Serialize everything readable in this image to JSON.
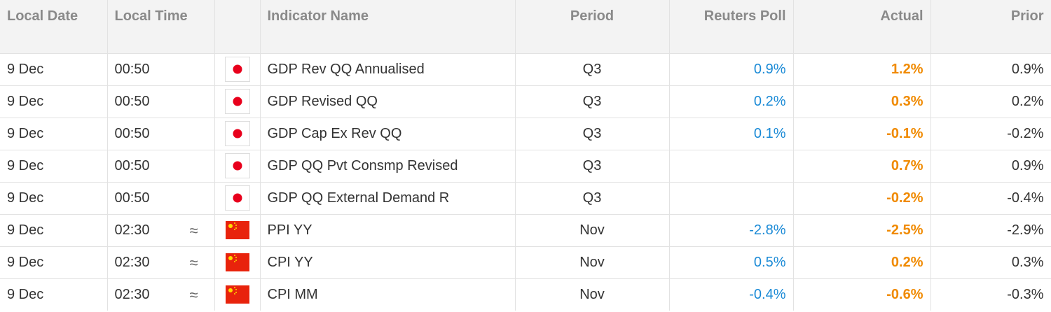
{
  "header": {
    "local_date": "Local Date",
    "local_time": "Local Time",
    "indicator": "Indicator Name",
    "period": "Period",
    "poll": "Reuters Poll",
    "actual": "Actual",
    "prior": "Prior"
  },
  "rows": [
    {
      "date": "9 Dec",
      "time": "00:50",
      "indicator": "GDP Rev QQ Annualised",
      "period": "Q3",
      "poll": "0.9%",
      "actual": "1.2%",
      "prior": "0.9%"
    },
    {
      "date": "9 Dec",
      "time": "00:50",
      "indicator": "GDP Revised QQ",
      "period": "Q3",
      "poll": "0.2%",
      "actual": "0.3%",
      "prior": "0.2%"
    },
    {
      "date": "9 Dec",
      "time": "00:50",
      "indicator": "GDP Cap Ex Rev QQ",
      "period": "Q3",
      "poll": "0.1%",
      "actual": "-0.1%",
      "prior": "-0.2%"
    },
    {
      "date": "9 Dec",
      "time": "00:50",
      "indicator": "GDP QQ Pvt Consmp Revised",
      "period": "Q3",
      "actual": "0.7%",
      "prior": "0.9%"
    },
    {
      "date": "9 Dec",
      "time": "00:50",
      "indicator": "GDP QQ External Demand R",
      "period": "Q3",
      "actual": "-0.2%",
      "prior": "-0.4%"
    },
    {
      "date": "9 Dec",
      "time": "02:30",
      "marker": "≈",
      "indicator": "PPI YY",
      "period": "Nov",
      "poll": "-2.8%",
      "actual": "-2.5%",
      "prior": "-2.9%"
    },
    {
      "date": "9 Dec",
      "time": "02:30",
      "marker": "≈",
      "indicator": "CPI YY",
      "period": "Nov",
      "poll": "0.5%",
      "actual": "0.2%",
      "prior": "0.3%"
    },
    {
      "date": "9 Dec",
      "time": "02:30",
      "marker": "≈",
      "indicator": "CPI MM",
      "period": "Nov",
      "poll": "-0.4%",
      "actual": "-0.6%",
      "prior": "-0.3%"
    }
  ]
}
